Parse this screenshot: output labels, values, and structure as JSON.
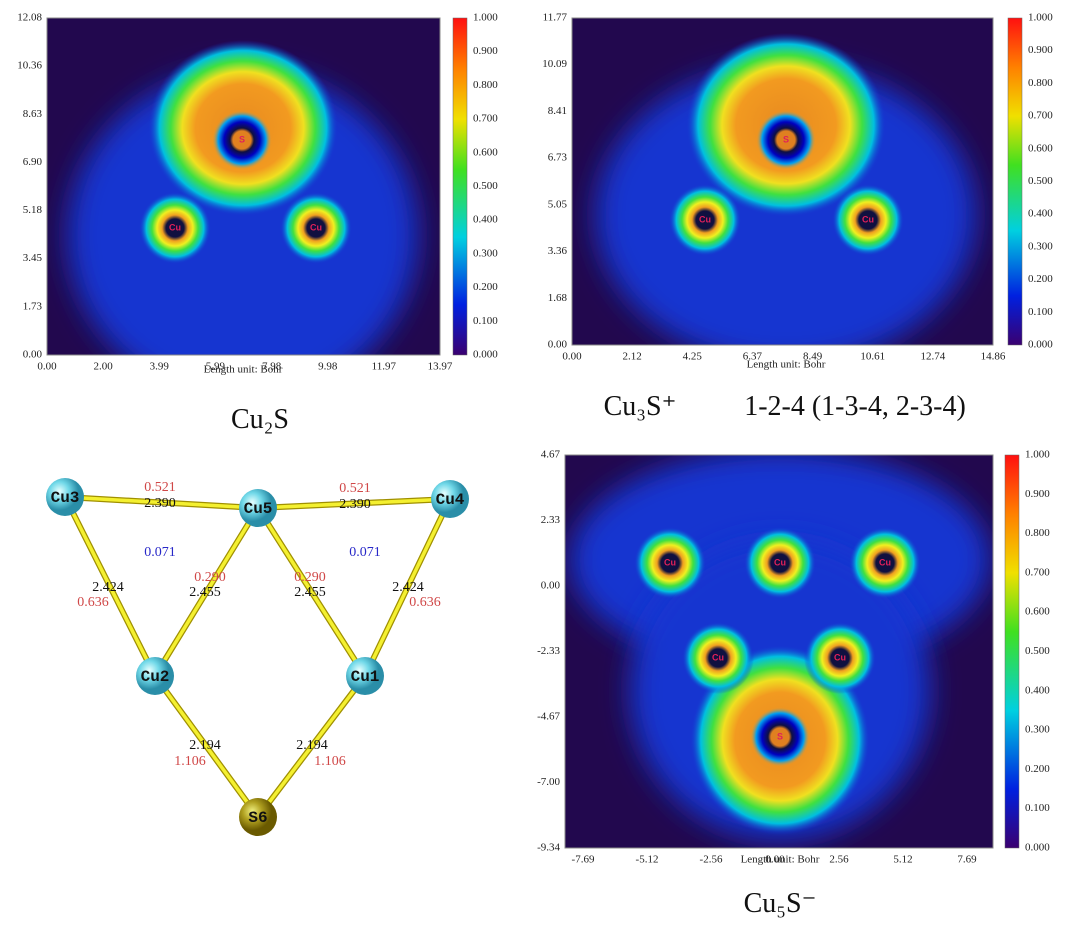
{
  "panels": [
    {
      "y_ticks": [
        "12.08",
        "10.36",
        "8.63",
        "6.90",
        "5.18",
        "3.45",
        "1.73",
        "0.00"
      ],
      "x_ticks": [
        "0.00",
        "2.00",
        "3.99",
        "5.99",
        "7.98",
        "9.98",
        "11.97",
        "13.97"
      ],
      "x_label": "Length unit: Bohr",
      "colorbar_ticks": [
        "1.000",
        "0.900",
        "0.800",
        "0.700",
        "0.600",
        "0.500",
        "0.400",
        "0.300",
        "0.200",
        "0.100",
        "0.000"
      ],
      "atom_labels": [
        "S",
        "Cu",
        "Cu"
      ],
      "caption": [
        "Cu₂S"
      ]
    },
    {
      "y_ticks": [
        "11.77",
        "10.09",
        "8.41",
        "6.73",
        "5.05",
        "3.36",
        "1.68",
        "0.00"
      ],
      "x_ticks": [
        "0.00",
        "2.12",
        "4.25",
        "6.37",
        "8.49",
        "10.61",
        "12.74",
        "14.86"
      ],
      "x_label": "Length unit: Bohr",
      "colorbar_ticks": [
        "1.000",
        "0.900",
        "0.800",
        "0.700",
        "0.600",
        "0.500",
        "0.400",
        "0.300",
        "0.200",
        "0.100",
        "0.000"
      ],
      "atom_labels": [
        "S",
        "Cu",
        "Cu"
      ],
      "caption": [
        "Cu₃S⁺",
        "1-2-4 (1-3-4, 2-3-4)"
      ]
    },
    {
      "y_ticks": [
        "4.67",
        "2.33",
        "0.00",
        "-2.33",
        "-4.67",
        "-7.00",
        "-9.34"
      ],
      "x_ticks": [
        "-7.69",
        "-5.12",
        "-2.56",
        "0.00",
        "2.56",
        "5.12",
        "7.69"
      ],
      "x_label": "Length unit: Bohr",
      "colorbar_ticks": [
        "1.000",
        "0.900",
        "0.800",
        "0.700",
        "0.600",
        "0.500",
        "0.400",
        "0.300",
        "0.200",
        "0.100",
        "0.000"
      ],
      "atom_labels": [
        "Cu",
        "Cu",
        "Cu",
        "Cu",
        "Cu",
        "S"
      ],
      "caption": [
        "Cu₅S⁻"
      ]
    }
  ],
  "structure": {
    "atoms": [
      "Cu3",
      "Cu5",
      "Cu4",
      "Cu2",
      "Cu1",
      "S6"
    ],
    "bonds": [
      {
        "length": "2.390",
        "index": "0.521"
      },
      {
        "length": "2.390",
        "index": "0.521"
      },
      {
        "length": "2.424",
        "index": "0.636"
      },
      {
        "length": "2.455",
        "index": "0.290"
      },
      {
        "length": "2.455",
        "index": "0.290"
      },
      {
        "length": "2.424",
        "index": "0.636"
      },
      {
        "length": "2.194",
        "index": "1.106"
      },
      {
        "length": "2.194",
        "index": "1.106"
      }
    ],
    "ring_labels": [
      "0.071",
      "0.071"
    ]
  }
}
